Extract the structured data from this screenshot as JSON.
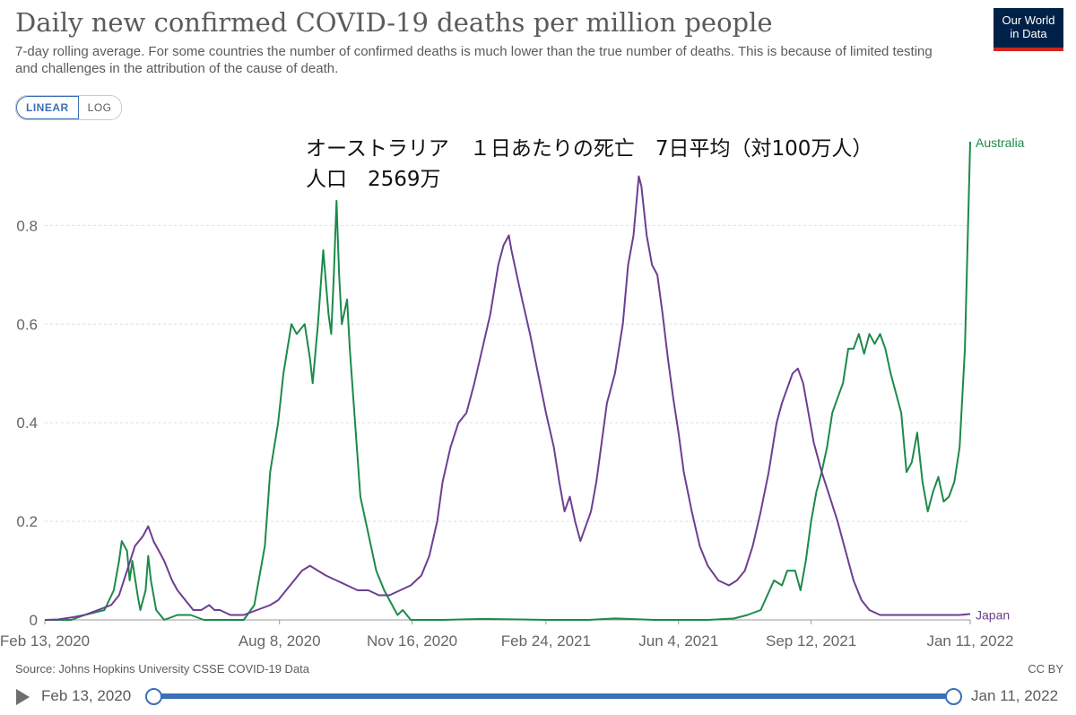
{
  "header": {
    "title": "Daily new confirmed COVID-19 deaths per million people",
    "subtitle": "7-day rolling average. For some countries the number of confirmed deaths is much lower than the true number of deaths. This is because of limited testing and challenges in the attribution of the cause of death.",
    "logo_line1": "Our World",
    "logo_line2": "in Data"
  },
  "controls": {
    "linear_label": "LINEAR",
    "log_label": "LOG"
  },
  "annotation": {
    "line1": "オーストラリア　１日あたりの死亡　7日平均（対100万人）",
    "line2": "人口　2569万"
  },
  "footer": {
    "source": "Source: Johns Hopkins University CSSE COVID-19 Data",
    "license": "CC BY"
  },
  "timeline": {
    "start_label": "Feb 13, 2020",
    "end_label": "Jan 11, 2022"
  },
  "colors": {
    "australia": "#1c8a4a",
    "japan": "#6d3e91",
    "grid": "#dddddd",
    "axis_text": "#666666"
  },
  "chart_data": {
    "type": "line",
    "title": "Daily new confirmed COVID-19 deaths per million people",
    "xlabel": "",
    "ylabel": "",
    "ylim": [
      0,
      0.97
    ],
    "yticks": [
      0,
      0.2,
      0.4,
      0.6,
      0.8
    ],
    "ytick_labels": [
      "0",
      "0.2",
      "0.4",
      "0.6",
      "0.8"
    ],
    "x_start": "2020-02-13",
    "x_end": "2022-01-11",
    "xticks": [
      {
        "day": 0,
        "label": "Feb 13, 2020"
      },
      {
        "day": 177,
        "label": "Aug 8, 2020"
      },
      {
        "day": 277,
        "label": "Nov 16, 2020"
      },
      {
        "day": 378,
        "label": "Feb 24, 2021"
      },
      {
        "day": 478,
        "label": "Jun 4, 2021"
      },
      {
        "day": 578,
        "label": "Sep 12, 2021"
      },
      {
        "day": 698,
        "label": "Jan 11, 2022"
      }
    ],
    "series": [
      {
        "name": "Australia",
        "color": "#1c8a4a",
        "points": [
          [
            0,
            0
          ],
          [
            20,
            0
          ],
          [
            30,
            0.01
          ],
          [
            45,
            0.02
          ],
          [
            52,
            0.06
          ],
          [
            56,
            0.12
          ],
          [
            58,
            0.16
          ],
          [
            62,
            0.14
          ],
          [
            64,
            0.08
          ],
          [
            66,
            0.12
          ],
          [
            70,
            0.05
          ],
          [
            72,
            0.02
          ],
          [
            76,
            0.06
          ],
          [
            78,
            0.13
          ],
          [
            80,
            0.08
          ],
          [
            84,
            0.02
          ],
          [
            90,
            0
          ],
          [
            100,
            0.01
          ],
          [
            110,
            0.01
          ],
          [
            120,
            0
          ],
          [
            140,
            0
          ],
          [
            150,
            0
          ],
          [
            158,
            0.03
          ],
          [
            166,
            0.15
          ],
          [
            170,
            0.3
          ],
          [
            176,
            0.4
          ],
          [
            180,
            0.5
          ],
          [
            186,
            0.6
          ],
          [
            190,
            0.58
          ],
          [
            196,
            0.6
          ],
          [
            200,
            0.53
          ],
          [
            202,
            0.48
          ],
          [
            206,
            0.6
          ],
          [
            210,
            0.75
          ],
          [
            214,
            0.62
          ],
          [
            216,
            0.58
          ],
          [
            218,
            0.7
          ],
          [
            220,
            0.85
          ],
          [
            222,
            0.7
          ],
          [
            224,
            0.6
          ],
          [
            228,
            0.65
          ],
          [
            230,
            0.55
          ],
          [
            234,
            0.4
          ],
          [
            238,
            0.25
          ],
          [
            242,
            0.2
          ],
          [
            246,
            0.15
          ],
          [
            250,
            0.1
          ],
          [
            256,
            0.06
          ],
          [
            260,
            0.04
          ],
          [
            266,
            0.01
          ],
          [
            270,
            0.02
          ],
          [
            276,
            0
          ],
          [
            300,
            0
          ],
          [
            330,
            0.002
          ],
          [
            380,
            0
          ],
          [
            410,
            0
          ],
          [
            430,
            0.003
          ],
          [
            440,
            0.002
          ],
          [
            460,
            0
          ],
          [
            500,
            0
          ],
          [
            520,
            0.003
          ],
          [
            530,
            0.01
          ],
          [
            540,
            0.02
          ],
          [
            545,
            0.05
          ],
          [
            550,
            0.08
          ],
          [
            556,
            0.07
          ],
          [
            560,
            0.1
          ],
          [
            566,
            0.1
          ],
          [
            570,
            0.06
          ],
          [
            574,
            0.12
          ],
          [
            578,
            0.2
          ],
          [
            582,
            0.26
          ],
          [
            586,
            0.3
          ],
          [
            590,
            0.35
          ],
          [
            594,
            0.42
          ],
          [
            598,
            0.45
          ],
          [
            602,
            0.48
          ],
          [
            606,
            0.55
          ],
          [
            610,
            0.55
          ],
          [
            614,
            0.58
          ],
          [
            618,
            0.54
          ],
          [
            622,
            0.58
          ],
          [
            626,
            0.56
          ],
          [
            630,
            0.58
          ],
          [
            634,
            0.55
          ],
          [
            638,
            0.5
          ],
          [
            642,
            0.46
          ],
          [
            646,
            0.42
          ],
          [
            650,
            0.3
          ],
          [
            654,
            0.32
          ],
          [
            658,
            0.38
          ],
          [
            662,
            0.28
          ],
          [
            666,
            0.22
          ],
          [
            670,
            0.26
          ],
          [
            674,
            0.29
          ],
          [
            678,
            0.24
          ],
          [
            682,
            0.25
          ],
          [
            686,
            0.28
          ],
          [
            690,
            0.35
          ],
          [
            694,
            0.55
          ],
          [
            698,
            0.97
          ]
        ]
      },
      {
        "name": "Japan",
        "color": "#6d3e91",
        "points": [
          [
            0,
            0
          ],
          [
            10,
            0.001
          ],
          [
            20,
            0.005
          ],
          [
            30,
            0.01
          ],
          [
            40,
            0.02
          ],
          [
            50,
            0.03
          ],
          [
            56,
            0.05
          ],
          [
            62,
            0.1
          ],
          [
            68,
            0.15
          ],
          [
            74,
            0.17
          ],
          [
            78,
            0.19
          ],
          [
            82,
            0.16
          ],
          [
            86,
            0.14
          ],
          [
            90,
            0.12
          ],
          [
            96,
            0.08
          ],
          [
            100,
            0.06
          ],
          [
            106,
            0.04
          ],
          [
            112,
            0.02
          ],
          [
            118,
            0.02
          ],
          [
            124,
            0.03
          ],
          [
            128,
            0.02
          ],
          [
            132,
            0.02
          ],
          [
            140,
            0.01
          ],
          [
            150,
            0.01
          ],
          [
            160,
            0.02
          ],
          [
            170,
            0.03
          ],
          [
            176,
            0.04
          ],
          [
            182,
            0.06
          ],
          [
            188,
            0.08
          ],
          [
            194,
            0.1
          ],
          [
            200,
            0.11
          ],
          [
            206,
            0.1
          ],
          [
            212,
            0.09
          ],
          [
            220,
            0.08
          ],
          [
            228,
            0.07
          ],
          [
            236,
            0.06
          ],
          [
            244,
            0.06
          ],
          [
            252,
            0.05
          ],
          [
            260,
            0.05
          ],
          [
            268,
            0.06
          ],
          [
            276,
            0.07
          ],
          [
            284,
            0.09
          ],
          [
            290,
            0.13
          ],
          [
            296,
            0.2
          ],
          [
            300,
            0.28
          ],
          [
            306,
            0.35
          ],
          [
            312,
            0.4
          ],
          [
            318,
            0.42
          ],
          [
            324,
            0.48
          ],
          [
            330,
            0.55
          ],
          [
            336,
            0.62
          ],
          [
            342,
            0.72
          ],
          [
            346,
            0.76
          ],
          [
            350,
            0.78
          ],
          [
            352,
            0.75
          ],
          [
            356,
            0.7
          ],
          [
            360,
            0.65
          ],
          [
            366,
            0.58
          ],
          [
            372,
            0.5
          ],
          [
            378,
            0.42
          ],
          [
            384,
            0.35
          ],
          [
            388,
            0.28
          ],
          [
            392,
            0.22
          ],
          [
            396,
            0.25
          ],
          [
            400,
            0.2
          ],
          [
            404,
            0.16
          ],
          [
            408,
            0.19
          ],
          [
            412,
            0.22
          ],
          [
            416,
            0.28
          ],
          [
            420,
            0.36
          ],
          [
            424,
            0.44
          ],
          [
            430,
            0.5
          ],
          [
            436,
            0.6
          ],
          [
            440,
            0.72
          ],
          [
            444,
            0.78
          ],
          [
            448,
            0.9
          ],
          [
            450,
            0.88
          ],
          [
            454,
            0.78
          ],
          [
            458,
            0.72
          ],
          [
            462,
            0.7
          ],
          [
            466,
            0.62
          ],
          [
            470,
            0.53
          ],
          [
            474,
            0.45
          ],
          [
            478,
            0.38
          ],
          [
            482,
            0.3
          ],
          [
            488,
            0.22
          ],
          [
            494,
            0.15
          ],
          [
            500,
            0.11
          ],
          [
            508,
            0.08
          ],
          [
            516,
            0.07
          ],
          [
            522,
            0.08
          ],
          [
            528,
            0.1
          ],
          [
            534,
            0.15
          ],
          [
            540,
            0.22
          ],
          [
            546,
            0.3
          ],
          [
            552,
            0.4
          ],
          [
            556,
            0.44
          ],
          [
            560,
            0.47
          ],
          [
            564,
            0.5
          ],
          [
            568,
            0.51
          ],
          [
            572,
            0.48
          ],
          [
            576,
            0.42
          ],
          [
            580,
            0.36
          ],
          [
            586,
            0.3
          ],
          [
            592,
            0.25
          ],
          [
            598,
            0.2
          ],
          [
            604,
            0.14
          ],
          [
            610,
            0.08
          ],
          [
            616,
            0.04
          ],
          [
            622,
            0.02
          ],
          [
            630,
            0.01
          ],
          [
            640,
            0.01
          ],
          [
            650,
            0.01
          ],
          [
            660,
            0.01
          ],
          [
            670,
            0.01
          ],
          [
            680,
            0.01
          ],
          [
            690,
            0.01
          ],
          [
            698,
            0.012
          ]
        ]
      }
    ]
  }
}
